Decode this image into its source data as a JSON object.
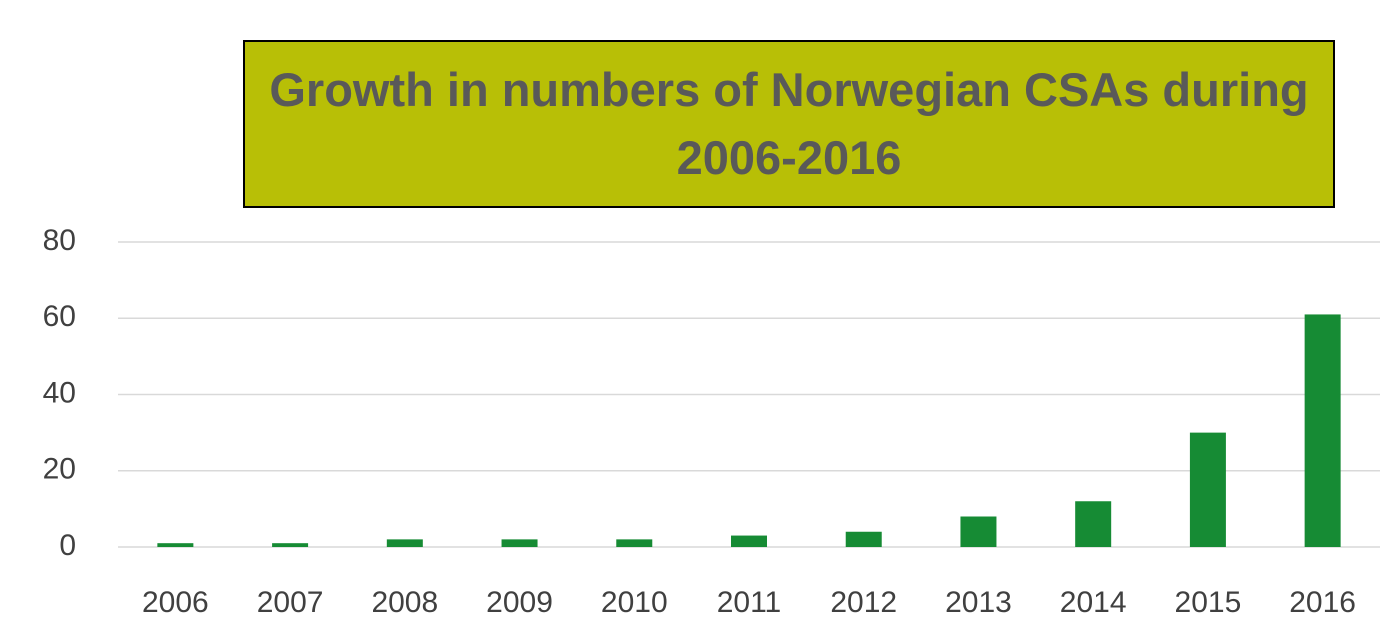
{
  "chart_data": {
    "type": "bar",
    "title": "Growth in numbers of Norwegian CSAs during 2006-2016",
    "categories": [
      "2006",
      "2007",
      "2008",
      "2009",
      "2010",
      "2011",
      "2012",
      "2013",
      "2014",
      "2015",
      "2016"
    ],
    "values": [
      1,
      1,
      2,
      2,
      2,
      3,
      4,
      8,
      12,
      30,
      61
    ],
    "color": "#168b34",
    "ylim": [
      0,
      80
    ],
    "yticks": [
      0,
      20,
      40,
      60,
      80
    ],
    "grid": true
  }
}
